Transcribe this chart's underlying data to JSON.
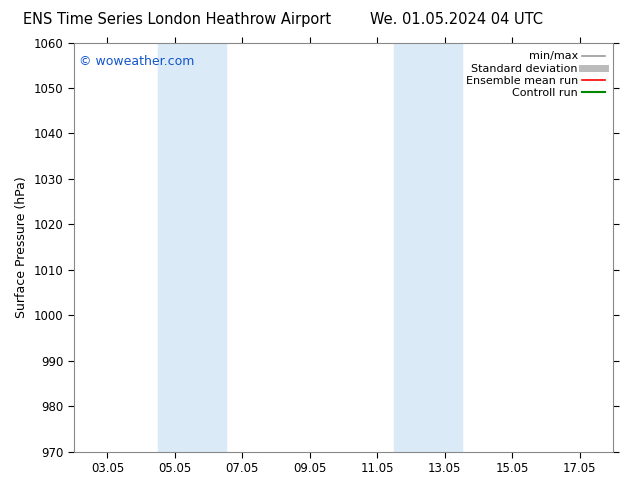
{
  "title_left": "ENS Time Series London Heathrow Airport",
  "title_right": "We. 01.05.2024 04 UTC",
  "ylabel": "Surface Pressure (hPa)",
  "ylim": [
    970,
    1060
  ],
  "yticks": [
    970,
    980,
    990,
    1000,
    1010,
    1020,
    1030,
    1040,
    1050,
    1060
  ],
  "xlim_start": 1.0,
  "xlim_end": 17.0,
  "xtick_positions": [
    2.0,
    4.0,
    6.0,
    8.0,
    10.0,
    12.0,
    14.0,
    16.0
  ],
  "xtick_labels": [
    "03.05",
    "05.05",
    "07.05",
    "09.05",
    "11.05",
    "13.05",
    "15.05",
    "17.05"
  ],
  "shade_bands": [
    {
      "x_start": 3.5,
      "x_end": 5.5,
      "color": "#daeaf7"
    },
    {
      "x_start": 10.5,
      "x_end": 12.5,
      "color": "#daeaf7"
    }
  ],
  "watermark_text": "© woweather.com",
  "watermark_color": "#1155cc",
  "watermark_fontsize": 9,
  "legend_entries": [
    {
      "label": "min/max",
      "color": "#999999",
      "lw": 1.2
    },
    {
      "label": "Standard deviation",
      "color": "#bbbbbb",
      "lw": 5
    },
    {
      "label": "Ensemble mean run",
      "color": "#ff0000",
      "lw": 1.2
    },
    {
      "label": "Controll run",
      "color": "#008800",
      "lw": 1.5
    }
  ],
  "background_color": "#ffffff",
  "plot_bg_color": "#ffffff",
  "spine_color": "#888888",
  "title_fontsize": 10.5,
  "axis_label_fontsize": 9,
  "tick_fontsize": 8.5,
  "legend_fontsize": 8
}
